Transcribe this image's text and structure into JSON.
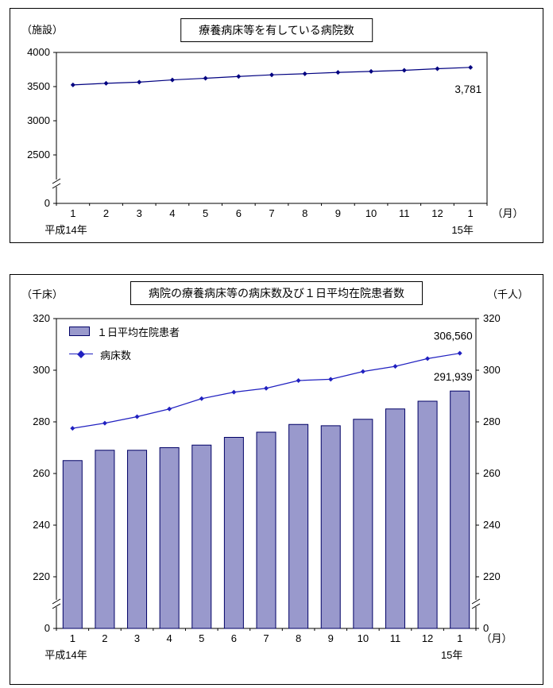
{
  "chart_data": [
    {
      "type": "line",
      "title": "療養病床等を有している病院数",
      "unit_left": "（施設）",
      "month_unit": "（月）",
      "era_left": "平成14年",
      "era_right": "15年",
      "categories": [
        "1",
        "2",
        "3",
        "4",
        "5",
        "6",
        "7",
        "8",
        "9",
        "10",
        "11",
        "12",
        "1"
      ],
      "series": [
        {
          "name": "療養病床等を有している病院数",
          "values": [
            3525,
            3548,
            3565,
            3598,
            3622,
            3648,
            3672,
            3688,
            3708,
            3722,
            3738,
            3762,
            3781
          ],
          "color": "#000080",
          "marker": "diamond"
        }
      ],
      "yticks": [
        4000,
        3500,
        3000,
        2500
      ],
      "zero_label": "0",
      "ylim": [
        2500,
        4000
      ],
      "y_axis_break": true,
      "grid": false,
      "annotations": [
        {
          "text": "3,781",
          "series": 0,
          "point_index": 12
        }
      ]
    },
    {
      "type": "bar+line",
      "title": "病院の療養病床等の病床数及び１日平均在院患者数",
      "unit_left": "（千床）",
      "unit_right": "（千人）",
      "month_unit": "（月）",
      "era_left": "平成14年",
      "era_right": "15年",
      "categories": [
        "1",
        "2",
        "3",
        "4",
        "5",
        "6",
        "7",
        "8",
        "9",
        "10",
        "11",
        "12",
        "1"
      ],
      "bar_series": {
        "name": "１日平均在院患者",
        "values": [
          265,
          269,
          269,
          270,
          271,
          274,
          276,
          279,
          278.5,
          281,
          285,
          288,
          291.939
        ],
        "fill": "#9999CC",
        "border": "#000066"
      },
      "line_series": {
        "name": "病床数",
        "values": [
          277.5,
          279.5,
          282,
          285,
          289,
          291.5,
          293,
          296,
          296.5,
          299.5,
          301.5,
          304.5,
          306.56
        ],
        "color": "#2020C0",
        "marker": "diamond"
      },
      "yticks": [
        320,
        300,
        280,
        260,
        240,
        220
      ],
      "zero_label": "0",
      "ylim": [
        220,
        320
      ],
      "y_axis_break": true,
      "grid": false,
      "legend_position": "top-left-inside",
      "annotations": [
        {
          "text": "306,560",
          "target": "line",
          "point_index": 12
        },
        {
          "text": "291,939",
          "target": "bar",
          "point_index": 12
        }
      ]
    }
  ]
}
